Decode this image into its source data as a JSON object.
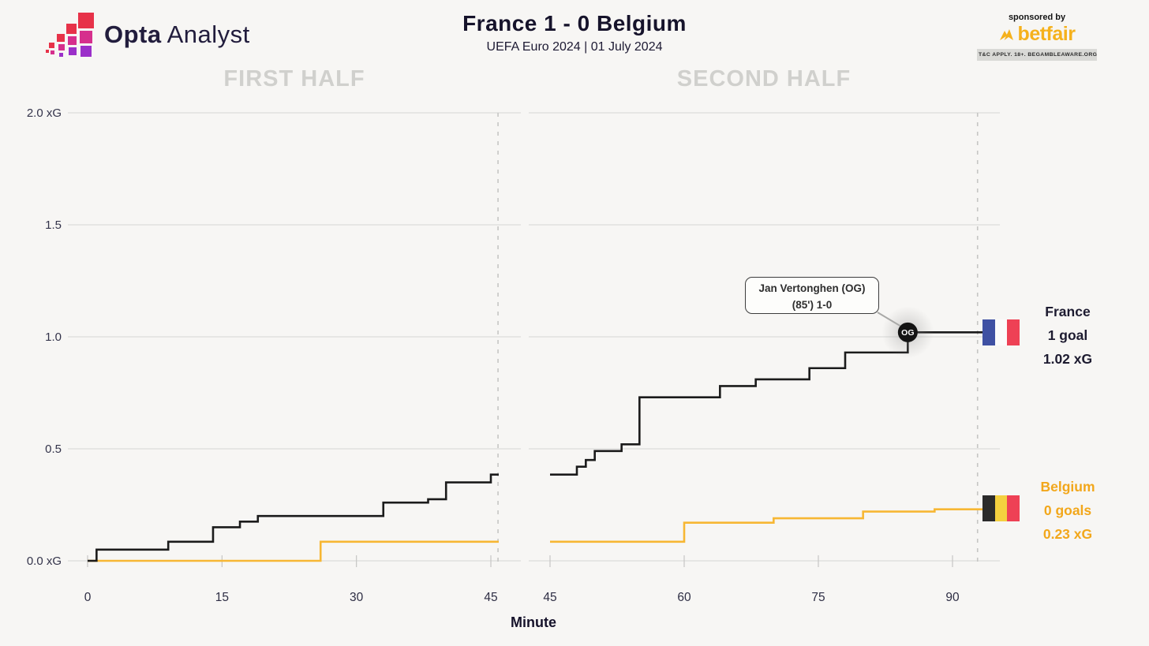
{
  "header": {
    "logo": {
      "brand_bold": "Opta",
      "brand_light": "Analyst",
      "colors": {
        "red": "#e73249",
        "pink": "#d62f8d",
        "purple": "#9b30c9"
      }
    },
    "title": "France 1 - 0 Belgium",
    "subtitle": "UEFA Euro 2024 | 01 July 2024",
    "sponsor": {
      "tagline": "sponsored by",
      "name": "betfair",
      "color": "#f5b11c",
      "terms": "T&C APPLY. 18+. BEGAMBLEAWARE.ORG"
    }
  },
  "axis": {
    "minute_label": "Minute"
  },
  "chart_data": {
    "type": "line",
    "style": "step-after",
    "title": "France 1 - 0 Belgium cumulative xG race",
    "xlabel": "Minute",
    "ylabel": "xG",
    "ylim": [
      0,
      2.0
    ],
    "grid": "horizontal",
    "yticks": [
      {
        "value": 2.0,
        "label": "2.0 xG"
      },
      {
        "value": 1.5,
        "label": "1.5"
      },
      {
        "value": 1.0,
        "label": "1.0"
      },
      {
        "value": 0.5,
        "label": "0.5"
      },
      {
        "value": 0.0,
        "label": "0.0 xG"
      }
    ],
    "panels": [
      {
        "label": "FIRST HALF",
        "xticks": [
          0,
          15,
          30,
          45
        ],
        "x_start": 0,
        "x_end": 46,
        "end_line_minute": 45.8
      },
      {
        "label": "SECOND HALF",
        "xticks": [
          45,
          60,
          75,
          90
        ],
        "x_start": 45,
        "x_end": 93,
        "end_line_minute": 92.8
      }
    ],
    "series": [
      {
        "team": "France",
        "color": "#1b1b1b",
        "goals": 1,
        "total_xg": 1.02,
        "first_half_steps": [
          [
            0,
            0
          ],
          [
            1,
            0.05
          ],
          [
            9,
            0.085
          ],
          [
            14,
            0.15
          ],
          [
            17,
            0.175
          ],
          [
            19,
            0.2
          ],
          [
            33,
            0.26
          ],
          [
            38,
            0.275
          ],
          [
            40,
            0.35
          ],
          [
            45,
            0.385
          ]
        ],
        "second_half_steps": [
          [
            45,
            0.385
          ],
          [
            48,
            0.42
          ],
          [
            49,
            0.45
          ],
          [
            50,
            0.49
          ],
          [
            53,
            0.52
          ],
          [
            55,
            0.73
          ],
          [
            64,
            0.78
          ],
          [
            68,
            0.81
          ],
          [
            74,
            0.86
          ],
          [
            78,
            0.93
          ],
          [
            85,
            1.02
          ]
        ]
      },
      {
        "team": "Belgium",
        "color": "#f7b733",
        "goals": 0,
        "total_xg": 0.23,
        "first_half_steps": [
          [
            0,
            0
          ],
          [
            26,
            0.085
          ]
        ],
        "second_half_steps": [
          [
            45,
            0.085
          ],
          [
            60,
            0.17
          ],
          [
            70,
            0.19
          ],
          [
            80,
            0.22
          ],
          [
            88,
            0.23
          ]
        ]
      }
    ],
    "events": [
      {
        "type": "goal",
        "marker": "OG",
        "team": "France",
        "minute": 85,
        "xg_level": 1.02,
        "label_line1": "Jan Vertonghen (OG)",
        "label_line2": "(85') 1-0"
      }
    ],
    "legend_position": "right"
  },
  "side_labels": {
    "france": {
      "name": "France",
      "goals_label": "1 goal",
      "xg_label": "1.02 xG",
      "text_color": "#1d1b30",
      "flag_colors": [
        "#3f51a3",
        "#fbfbfb",
        "#ee4155"
      ]
    },
    "belgium": {
      "name": "Belgium",
      "goals_label": "0 goals",
      "xg_label": "0.23 xG",
      "text_color": "#f2a71b",
      "flag_colors": [
        "#2b2b2b",
        "#f4d03f",
        "#ee4155"
      ]
    }
  }
}
